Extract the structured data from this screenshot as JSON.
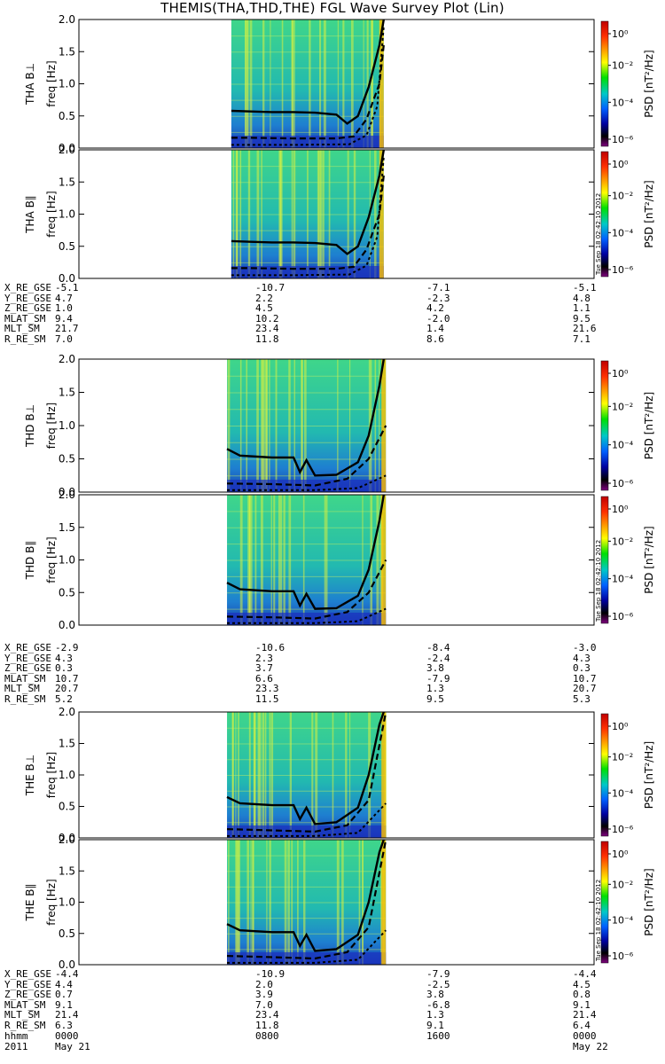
{
  "chart_data": {
    "type": "heatmap",
    "title": "THEMIS(THA,THD,THE) FGL Wave Survey Plot (Lin)",
    "x_axis": {
      "start": "2011-05-21 00:00",
      "end": "2011-05-22 00:00"
    },
    "time_ticks": [
      {
        "hhmm": "0000",
        "date": "May 21"
      },
      {
        "hhmm": "0800",
        "date": ""
      },
      {
        "hhmm": "1600",
        "date": ""
      },
      {
        "hhmm": "0000",
        "date": "May 22"
      }
    ],
    "colorbar": {
      "label": "PSD [nT²/Hz]",
      "scale": "log",
      "tick_labels": [
        "10⁰",
        "10⁻²",
        "10⁻⁴",
        "10⁻⁶"
      ],
      "colors": [
        "#ff0000",
        "#ffff00",
        "#00ff00",
        "#00c8c8",
        "#0000ff",
        "#000000",
        "#800080"
      ]
    },
    "yaxis": {
      "label": "freq [Hz]",
      "range": [
        0,
        2.0
      ],
      "ticks": [
        "0.0",
        "0.5",
        "1.0",
        "1.5",
        "2.0"
      ]
    },
    "stamp": "Tue Sep 18 02:42:10 2012",
    "panels": [
      {
        "probe": "THA",
        "component": "B⊥",
        "label": "THA B⊥",
        "data_start_hour": 7.1,
        "data_end_hour": 14.2,
        "lines": {
          "solid": [
            [
              7.1,
              0.58
            ],
            [
              8,
              0.57
            ],
            [
              9,
              0.56
            ],
            [
              10,
              0.56
            ],
            [
              11,
              0.55
            ],
            [
              12,
              0.52
            ],
            [
              12.5,
              0.38
            ],
            [
              13,
              0.5
            ],
            [
              13.5,
              0.95
            ],
            [
              14,
              1.6
            ],
            [
              14.2,
              2.0
            ]
          ],
          "dashed": [
            [
              7.1,
              0.16
            ],
            [
              8,
              0.16
            ],
            [
              10,
              0.15
            ],
            [
              12,
              0.15
            ],
            [
              12.8,
              0.18
            ],
            [
              13.4,
              0.45
            ],
            [
              14,
              1.0
            ],
            [
              14.2,
              1.6
            ]
          ],
          "dotted": [
            [
              7.1,
              0.05
            ],
            [
              10,
              0.05
            ],
            [
              12.6,
              0.06
            ],
            [
              13.4,
              0.2
            ],
            [
              13.9,
              0.65
            ],
            [
              14.2,
              1.9
            ]
          ]
        }
      },
      {
        "probe": "THA",
        "component": "B∥",
        "label": "THA B∥",
        "data_start_hour": 7.1,
        "data_end_hour": 14.2,
        "lines": {
          "solid": [
            [
              7.1,
              0.58
            ],
            [
              8,
              0.57
            ],
            [
              9,
              0.56
            ],
            [
              10,
              0.56
            ],
            [
              11,
              0.55
            ],
            [
              12,
              0.52
            ],
            [
              12.5,
              0.38
            ],
            [
              13,
              0.5
            ],
            [
              13.5,
              0.95
            ],
            [
              14,
              1.6
            ],
            [
              14.2,
              2.0
            ]
          ],
          "dashed": [
            [
              7.1,
              0.16
            ],
            [
              8,
              0.16
            ],
            [
              10,
              0.15
            ],
            [
              12,
              0.15
            ],
            [
              12.8,
              0.18
            ],
            [
              13.4,
              0.45
            ],
            [
              14,
              1.0
            ],
            [
              14.2,
              1.6
            ]
          ],
          "dotted": [
            [
              7.1,
              0.05
            ],
            [
              10,
              0.05
            ],
            [
              12.6,
              0.06
            ],
            [
              13.4,
              0.2
            ],
            [
              13.9,
              0.65
            ],
            [
              14.2,
              1.9
            ]
          ]
        }
      },
      {
        "probe": "THD",
        "component": "B⊥",
        "label": "THD B⊥",
        "data_start_hour": 6.9,
        "data_end_hour": 14.3,
        "lines": {
          "solid": [
            [
              6.9,
              0.65
            ],
            [
              7.5,
              0.55
            ],
            [
              9,
              0.52
            ],
            [
              10,
              0.52
            ],
            [
              10.3,
              0.3
            ],
            [
              10.6,
              0.48
            ],
            [
              11,
              0.25
            ],
            [
              12,
              0.26
            ],
            [
              13,
              0.45
            ],
            [
              13.5,
              0.85
            ],
            [
              14,
              1.6
            ],
            [
              14.2,
              2.0
            ]
          ],
          "dashed": [
            [
              6.9,
              0.13
            ],
            [
              9,
              0.12
            ],
            [
              11,
              0.1
            ],
            [
              12.5,
              0.2
            ],
            [
              13.5,
              0.5
            ],
            [
              14.3,
              1.0
            ]
          ],
          "dotted": [
            [
              6.9,
              0.03
            ],
            [
              11,
              0.03
            ],
            [
              13,
              0.06
            ],
            [
              14.3,
              0.25
            ]
          ]
        }
      },
      {
        "probe": "THD",
        "component": "B∥",
        "label": "THD B∥",
        "data_start_hour": 6.9,
        "data_end_hour": 14.3,
        "lines": {
          "solid": [
            [
              6.9,
              0.65
            ],
            [
              7.5,
              0.55
            ],
            [
              9,
              0.52
            ],
            [
              10,
              0.52
            ],
            [
              10.3,
              0.3
            ],
            [
              10.6,
              0.48
            ],
            [
              11,
              0.25
            ],
            [
              12,
              0.26
            ],
            [
              13,
              0.45
            ],
            [
              13.5,
              0.85
            ],
            [
              14,
              1.6
            ],
            [
              14.2,
              2.0
            ]
          ],
          "dashed": [
            [
              6.9,
              0.13
            ],
            [
              9,
              0.12
            ],
            [
              11,
              0.1
            ],
            [
              12.5,
              0.2
            ],
            [
              13.5,
              0.5
            ],
            [
              14.3,
              1.0
            ]
          ],
          "dotted": [
            [
              6.9,
              0.03
            ],
            [
              11,
              0.03
            ],
            [
              13,
              0.06
            ],
            [
              14.3,
              0.25
            ]
          ]
        }
      },
      {
        "probe": "THE",
        "component": "B⊥",
        "label": "THE B⊥",
        "data_start_hour": 6.9,
        "data_end_hour": 14.3,
        "lines": {
          "solid": [
            [
              6.9,
              0.65
            ],
            [
              7.5,
              0.55
            ],
            [
              9,
              0.52
            ],
            [
              10,
              0.52
            ],
            [
              10.3,
              0.3
            ],
            [
              10.6,
              0.48
            ],
            [
              11,
              0.22
            ],
            [
              12,
              0.25
            ],
            [
              13,
              0.48
            ],
            [
              13.5,
              1.0
            ],
            [
              14,
              1.8
            ],
            [
              14.2,
              2.0
            ]
          ],
          "dashed": [
            [
              6.9,
              0.14
            ],
            [
              9,
              0.12
            ],
            [
              11,
              0.1
            ],
            [
              12.5,
              0.2
            ],
            [
              13.5,
              0.6
            ],
            [
              14.3,
              2.0
            ]
          ],
          "dotted": [
            [
              6.9,
              0.03
            ],
            [
              11,
              0.03
            ],
            [
              13,
              0.08
            ],
            [
              14.3,
              0.55
            ]
          ]
        }
      },
      {
        "probe": "THE",
        "component": "B∥",
        "label": "THE B∥",
        "data_start_hour": 6.9,
        "data_end_hour": 14.3,
        "lines": {
          "solid": [
            [
              6.9,
              0.65
            ],
            [
              7.5,
              0.55
            ],
            [
              9,
              0.52
            ],
            [
              10,
              0.52
            ],
            [
              10.3,
              0.3
            ],
            [
              10.6,
              0.48
            ],
            [
              11,
              0.22
            ],
            [
              12,
              0.25
            ],
            [
              13,
              0.48
            ],
            [
              13.5,
              1.0
            ],
            [
              14,
              1.8
            ],
            [
              14.2,
              2.0
            ]
          ],
          "dashed": [
            [
              6.9,
              0.14
            ],
            [
              9,
              0.12
            ],
            [
              11,
              0.1
            ],
            [
              12.5,
              0.2
            ],
            [
              13.5,
              0.6
            ],
            [
              14.3,
              2.0
            ]
          ],
          "dotted": [
            [
              6.9,
              0.03
            ],
            [
              11,
              0.03
            ],
            [
              13,
              0.08
            ],
            [
              14.3,
              0.55
            ]
          ]
        }
      }
    ],
    "ephemeris_blocks": [
      {
        "probe": "THA",
        "rows": [
          {
            "label": "X_RE_GSE",
            "values": [
              "-5.1",
              "-10.7",
              "-7.1",
              "-5.1"
            ]
          },
          {
            "label": "Y_RE_GSE",
            "values": [
              "4.7",
              "2.2",
              "-2.3",
              "4.8"
            ]
          },
          {
            "label": "Z_RE_GSE",
            "values": [
              "1.0",
              "4.5",
              "4.2",
              "1.1"
            ]
          },
          {
            "label": "MLAT_SM",
            "values": [
              "9.4",
              "10.2",
              "-2.0",
              "9.5"
            ]
          },
          {
            "label": "MLT_SM",
            "values": [
              "21.7",
              "23.4",
              "1.4",
              "21.6"
            ]
          },
          {
            "label": "R_RE_SM",
            "values": [
              "7.0",
              "11.8",
              "8.6",
              "7.1"
            ]
          }
        ]
      },
      {
        "probe": "THD",
        "rows": [
          {
            "label": "X_RE_GSE",
            "values": [
              "-2.9",
              "-10.6",
              "-8.4",
              "-3.0"
            ]
          },
          {
            "label": "Y_RE_GSE",
            "values": [
              "4.3",
              "2.3",
              "-2.4",
              "4.3"
            ]
          },
          {
            "label": "Z_RE_GSE",
            "values": [
              "0.3",
              "3.7",
              "3.8",
              "0.3"
            ]
          },
          {
            "label": "MLAT_SM",
            "values": [
              "10.7",
              "6.6",
              "-7.9",
              "10.7"
            ]
          },
          {
            "label": "MLT_SM",
            "values": [
              "20.7",
              "23.3",
              "1.3",
              "20.7"
            ]
          },
          {
            "label": "R_RE_SM",
            "values": [
              "5.2",
              "11.5",
              "9.5",
              "5.3"
            ]
          }
        ]
      },
      {
        "probe": "THE",
        "rows": [
          {
            "label": "X_RE_GSE",
            "values": [
              "-4.4",
              "-10.9",
              "-7.9",
              "-4.4"
            ]
          },
          {
            "label": "Y_RE_GSE",
            "values": [
              "4.4",
              "2.0",
              "-2.5",
              "4.5"
            ]
          },
          {
            "label": "Z_RE_GSE",
            "values": [
              "0.7",
              "3.9",
              "3.8",
              "0.8"
            ]
          },
          {
            "label": "MLAT_SM",
            "values": [
              "9.1",
              "7.0",
              "-6.8",
              "9.1"
            ]
          },
          {
            "label": "MLT_SM",
            "values": [
              "21.4",
              "23.4",
              "1.3",
              "21.4"
            ]
          },
          {
            "label": "R_RE_SM",
            "values": [
              "6.3",
              "11.8",
              "9.1",
              "6.4"
            ]
          }
        ]
      }
    ],
    "footer": {
      "time_label": "hhmm",
      "year": "2011"
    }
  }
}
